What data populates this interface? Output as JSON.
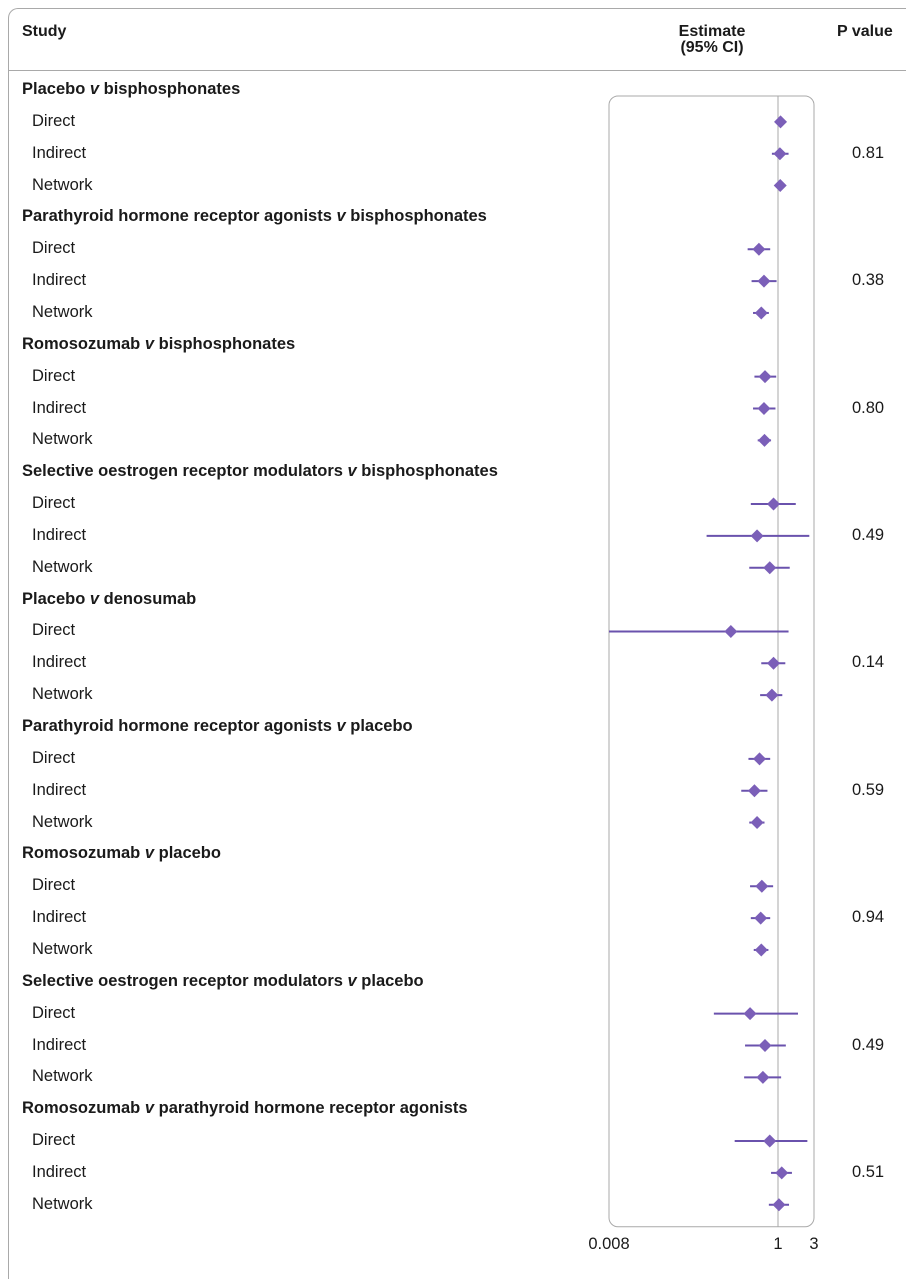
{
  "header": {
    "study": "Study",
    "estimate_line1": "Estimate",
    "estimate_line2": "(95% CI)",
    "pvalue": "P value"
  },
  "chart_data": {
    "type": "forest",
    "x_scale": "log",
    "xlim": [
      0.008,
      3
    ],
    "x_ticks": [
      "0.008",
      "1",
      "3"
    ],
    "reference_line": 1,
    "marker_color": "#7b5fb8",
    "line_color": "#6a52ad",
    "groups": [
      {
        "title_pre": "Placebo ",
        "title_v": "v",
        "title_post": " bisphosphonates",
        "p_value": "0.81",
        "rows": [
          {
            "label": "Direct",
            "est": 1.08,
            "lo": null,
            "hi": null
          },
          {
            "label": "Indirect",
            "est": 1.06,
            "lo": 0.84,
            "hi": 1.38
          },
          {
            "label": "Network",
            "est": 1.07,
            "lo": null,
            "hi": null
          }
        ]
      },
      {
        "title_pre": "Parathyroid hormone receptor agonists ",
        "title_v": "v",
        "title_post": " bisphosphonates",
        "p_value": "0.38",
        "rows": [
          {
            "label": "Direct",
            "est": 0.58,
            "lo": 0.42,
            "hi": 0.8
          },
          {
            "label": "Indirect",
            "est": 0.67,
            "lo": 0.47,
            "hi": 0.96
          },
          {
            "label": "Network",
            "est": 0.62,
            "lo": 0.49,
            "hi": 0.77
          }
        ]
      },
      {
        "title_pre": "Romosozumab ",
        "title_v": "v",
        "title_post": " bisphosphonates",
        "p_value": "0.80",
        "rows": [
          {
            "label": "Direct",
            "est": 0.69,
            "lo": 0.51,
            "hi": 0.95
          },
          {
            "label": "Indirect",
            "est": 0.67,
            "lo": 0.49,
            "hi": 0.93
          },
          {
            "label": "Network",
            "est": 0.68,
            "lo": 0.56,
            "hi": 0.82
          }
        ]
      },
      {
        "title_pre": "Selective oestrogen receptor modulators ",
        "title_v": "v",
        "title_post": " bisphosphonates",
        "p_value": "0.49",
        "rows": [
          {
            "label": "Direct",
            "est": 0.88,
            "lo": 0.46,
            "hi": 1.72
          },
          {
            "label": "Indirect",
            "est": 0.55,
            "lo": 0.13,
            "hi": 2.6
          },
          {
            "label": "Network",
            "est": 0.79,
            "lo": 0.44,
            "hi": 1.43
          }
        ]
      },
      {
        "title_pre": "Placebo ",
        "title_v": "v",
        "title_post": " denosumab",
        "p_value": "0.14",
        "rows": [
          {
            "label": "Direct",
            "est": 0.26,
            "lo": 0.008,
            "hi": 1.38
          },
          {
            "label": "Indirect",
            "est": 0.88,
            "lo": 0.62,
            "hi": 1.25
          },
          {
            "label": "Network",
            "est": 0.84,
            "lo": 0.6,
            "hi": 1.14
          }
        ]
      },
      {
        "title_pre": "Parathyroid hormone receptor agonists ",
        "title_v": "v",
        "title_post": " placebo",
        "p_value": "0.59",
        "rows": [
          {
            "label": "Direct",
            "est": 0.59,
            "lo": 0.43,
            "hi": 0.8
          },
          {
            "label": "Indirect",
            "est": 0.51,
            "lo": 0.35,
            "hi": 0.74
          },
          {
            "label": "Network",
            "est": 0.55,
            "lo": 0.44,
            "hi": 0.68
          }
        ]
      },
      {
        "title_pre": "Romosozumab ",
        "title_v": "v",
        "title_post": " placebo",
        "p_value": "0.94",
        "rows": [
          {
            "label": "Direct",
            "est": 0.63,
            "lo": 0.45,
            "hi": 0.87
          },
          {
            "label": "Indirect",
            "est": 0.61,
            "lo": 0.46,
            "hi": 0.8
          },
          {
            "label": "Network",
            "est": 0.62,
            "lo": 0.5,
            "hi": 0.76
          }
        ]
      },
      {
        "title_pre": "Selective oestrogen receptor modulators ",
        "title_v": "v",
        "title_post": " placebo",
        "p_value": "0.49",
        "rows": [
          {
            "label": "Direct",
            "est": 0.45,
            "lo": 0.16,
            "hi": 1.84
          },
          {
            "label": "Indirect",
            "est": 0.69,
            "lo": 0.39,
            "hi": 1.27
          },
          {
            "label": "Network",
            "est": 0.65,
            "lo": 0.38,
            "hi": 1.1
          }
        ]
      },
      {
        "title_pre": "Romosozumab ",
        "title_v": "v",
        "title_post": " parathyroid hormone receptor agonists",
        "p_value": "0.51",
        "rows": [
          {
            "label": "Direct",
            "est": 0.79,
            "lo": 0.29,
            "hi": 2.45
          },
          {
            "label": "Indirect",
            "est": 1.12,
            "lo": 0.82,
            "hi": 1.53
          },
          {
            "label": "Network",
            "est": 1.03,
            "lo": 0.77,
            "hi": 1.4
          }
        ]
      }
    ]
  }
}
